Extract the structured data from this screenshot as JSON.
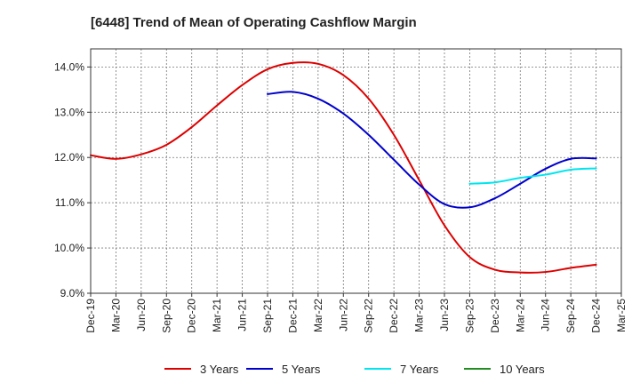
{
  "chart_data": {
    "type": "line",
    "title": "[6448]  Trend of Mean of Operating Cashflow Margin",
    "xlabel": "",
    "ylabel": "",
    "ylim": [
      9.0,
      14.4
    ],
    "yticks": [
      9.0,
      10.0,
      11.0,
      12.0,
      13.0,
      14.0
    ],
    "ytick_labels": [
      "9.0%",
      "10.0%",
      "11.0%",
      "12.0%",
      "13.0%",
      "14.0%"
    ],
    "categories": [
      "Dec-19",
      "Mar-20",
      "Jun-20",
      "Sep-20",
      "Dec-20",
      "Mar-21",
      "Jun-21",
      "Sep-21",
      "Dec-21",
      "Mar-22",
      "Jun-22",
      "Sep-22",
      "Dec-22",
      "Mar-23",
      "Jun-23",
      "Sep-23",
      "Dec-23",
      "Mar-24",
      "Jun-24",
      "Sep-24",
      "Dec-24",
      "Mar-25"
    ],
    "grid": true,
    "legend_position": "bottom",
    "series": [
      {
        "name": "3 Years",
        "color": "#dd0000",
        "values": [
          12.05,
          11.97,
          12.07,
          12.28,
          12.67,
          13.15,
          13.6,
          13.95,
          14.09,
          14.07,
          13.82,
          13.3,
          12.5,
          11.5,
          10.5,
          9.8,
          9.52,
          9.46,
          9.47,
          9.56,
          9.63,
          null
        ]
      },
      {
        "name": "5 Years",
        "color": "#0000cc",
        "values": [
          null,
          null,
          null,
          null,
          null,
          null,
          null,
          13.4,
          13.45,
          13.3,
          12.97,
          12.5,
          11.95,
          11.4,
          10.97,
          10.9,
          11.1,
          11.42,
          11.75,
          11.97,
          11.98,
          null
        ]
      },
      {
        "name": "7 Years",
        "color": "#00e5ee",
        "values": [
          null,
          null,
          null,
          null,
          null,
          null,
          null,
          null,
          null,
          null,
          null,
          null,
          null,
          null,
          null,
          11.42,
          11.45,
          11.55,
          11.62,
          11.73,
          11.76,
          null
        ]
      },
      {
        "name": "10 Years",
        "color": "#228b22",
        "values": [
          null,
          null,
          null,
          null,
          null,
          null,
          null,
          null,
          null,
          null,
          null,
          null,
          null,
          null,
          null,
          null,
          null,
          null,
          null,
          null,
          null,
          null
        ]
      }
    ]
  }
}
